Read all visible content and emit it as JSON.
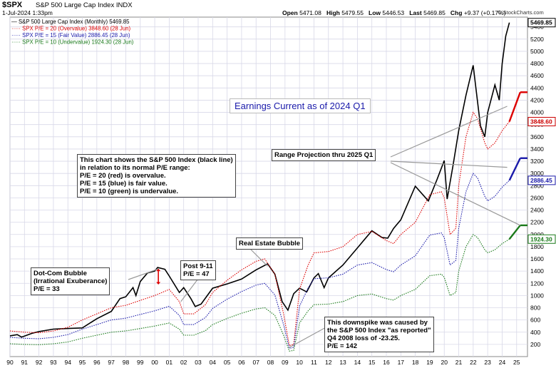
{
  "header": {
    "symbol": "$SPX",
    "name": "S&P 500 Large Cap Index  INDX",
    "date": "1-Jul-2024 1:33pm",
    "source": "© StockCharts.com",
    "open_label": "Open",
    "open": "5471.08",
    "high_label": "High",
    "high": "5479.55",
    "low_label": "Low",
    "low": "5446.53",
    "last_label": "Last",
    "last": "5469.85",
    "chg_label": "Chg",
    "chg": "+9.37 (+0.17%)"
  },
  "legend": [
    "— S&P 500 Large Cap Index (Monthly) 5469.85",
    "····· SPX P/E = 20 (Overvalue) 3848.60 (28 Jun)",
    "····· SPX P/E = 15 (Fair Value) 2886.45 (28 Jun)",
    "····· SPX P/E = 10 (Undervalue) 1924.30 (28 Jun)"
  ],
  "annotations": {
    "title": "Earnings Current as of 2024 Q1",
    "explain": "This chart shows the S&P 500 Index (black line)\nin relation to its normal P/E range:\nP/E = 20 (red) is overvalue.\nP/E = 15 (blue) is fair value.\nP/E = 10 (green) is undervalue.",
    "range": "Range Projection thru 2025 Q1",
    "realestate": "Real Estate Bubble",
    "post911": "Post 9-11\nP/E = 47",
    "dotcom": "Dot-Com Bubble\n(Irrational Exuberance)\nP/E = 33",
    "downspike": "This downspike was caused by\nthe S&P 500 Index \"as reported\"\nQ4 2008 loss of -23.25.\nP/E = 142"
  },
  "chart_data": {
    "type": "line",
    "x_tick_labels": [
      "90",
      "91",
      "92",
      "93",
      "94",
      "95",
      "96",
      "97",
      "98",
      "99",
      "00",
      "01",
      "02",
      "03",
      "04",
      "05",
      "06",
      "07",
      "08",
      "09",
      "10",
      "11",
      "12",
      "13",
      "14",
      "15",
      "16",
      "17",
      "18",
      "19",
      "20",
      "21",
      "22",
      "23",
      "24",
      "25"
    ],
    "y_tick_labels": [
      200,
      400,
      600,
      800,
      1000,
      1200,
      1400,
      1600,
      1800,
      2000,
      2200,
      2400,
      2600,
      2800,
      3000,
      3200,
      3400,
      3600,
      3800,
      4000,
      4200,
      4400,
      4600,
      4800,
      5000,
      5200,
      5400
    ],
    "ylim": [
      0,
      5560
    ],
    "xlim": [
      1990.0,
      2025.75
    ],
    "price_tags": [
      {
        "value": 5469.85,
        "label": "5469.85",
        "color": "#000000"
      },
      {
        "value": 3848.6,
        "label": "3848.60",
        "color": "#cc0000"
      },
      {
        "value": 2886.45,
        "label": "2886.45",
        "color": "#1a1aaa"
      },
      {
        "value": 1924.3,
        "label": "1924.30",
        "color": "#1a7a1a"
      }
    ],
    "series": [
      {
        "name": "S&P 500 Large Cap Index (Monthly) 5469.85",
        "color": "#000000",
        "style": "solid",
        "x": [
          1990.0,
          1990.5,
          1990.8,
          1991.0,
          1991.5,
          1992.0,
          1993.0,
          1994.0,
          1995.0,
          1996.0,
          1997.0,
          1997.6,
          1998.0,
          1998.5,
          1998.7,
          1999.0,
          1999.5,
          2000.0,
          2000.2,
          2000.7,
          2001.0,
          2001.7,
          2002.0,
          2002.5,
          2002.8,
          2003.2,
          2004.0,
          2005.0,
          2006.0,
          2007.0,
          2007.8,
          2008.3,
          2008.8,
          2009.2,
          2009.6,
          2010.0,
          2010.5,
          2011.0,
          2011.3,
          2011.7,
          2012.0,
          2013.0,
          2014.0,
          2015.0,
          2015.7,
          2016.1,
          2016.5,
          2017.0,
          2018.0,
          2018.9,
          2019.5,
          2020.0,
          2020.2,
          2020.6,
          2021.0,
          2021.5,
          2022.0,
          2022.5,
          2022.8,
          2023.0,
          2023.5,
          2023.8,
          2024.0,
          2024.25,
          2024.5
        ],
        "y": [
          340,
          360,
          320,
          335,
          380,
          410,
          450,
          460,
          470,
          620,
          740,
          950,
          980,
          1130,
          1000,
          1230,
          1370,
          1400,
          1460,
          1430,
          1320,
          1050,
          1130,
          950,
          820,
          860,
          1120,
          1190,
          1270,
          1420,
          1520,
          1350,
          900,
          760,
          1030,
          1120,
          1060,
          1290,
          1360,
          1130,
          1290,
          1500,
          1780,
          2060,
          1950,
          1940,
          2100,
          2240,
          2790,
          2550,
          2900,
          3210,
          2580,
          3120,
          3700,
          4280,
          4770,
          3780,
          3600,
          4000,
          4450,
          4200,
          4800,
          5250,
          5470
        ]
      },
      {
        "name": "SPX P/E = 20 (Overvalue) 3848.60 (28 Jun)",
        "color": "#dd0000",
        "style": "dotted",
        "x": [
          1990.0,
          1991.0,
          1992.0,
          1993.0,
          1994.0,
          1995.0,
          1996.0,
          1997.0,
          1998.0,
          1999.0,
          2000.0,
          2001.0,
          2001.7,
          2002.0,
          2002.7,
          2003.5,
          2004.0,
          2005.0,
          2006.0,
          2007.0,
          2007.6,
          2008.3,
          2008.9,
          2009.3,
          2009.6,
          2010.0,
          2010.6,
          2011.0,
          2012.0,
          2013.0,
          2014.0,
          2015.0,
          2016.0,
          2016.5,
          2017.0,
          2018.0,
          2019.0,
          2019.8,
          2020.0,
          2020.4,
          2020.8,
          2021.0,
          2021.5,
          2022.0,
          2022.3,
          2022.8,
          2023.0,
          2023.5,
          2024.0,
          2024.5
        ],
        "y": [
          420,
          400,
          390,
          420,
          480,
          600,
          700,
          800,
          840,
          920,
          1000,
          1100,
          900,
          700,
          700,
          850,
          1050,
          1250,
          1420,
          1560,
          1600,
          1350,
          700,
          180,
          200,
          1100,
          1500,
          1700,
          1720,
          1800,
          2000,
          2050,
          1900,
          1850,
          2000,
          2200,
          2650,
          2700,
          2600,
          2000,
          2100,
          2800,
          3600,
          4000,
          3900,
          3500,
          3400,
          3500,
          3700,
          3850
        ]
      },
      {
        "name": "SPX P/E = 15 (Fair Value) 2886.45 (28 Jun)",
        "color": "#1a1aaa",
        "style": "dotted",
        "x": [
          1990.0,
          1991.0,
          1992.0,
          1993.0,
          1994.0,
          1995.0,
          1996.0,
          1997.0,
          1998.0,
          1999.0,
          2000.0,
          2001.0,
          2001.7,
          2002.0,
          2002.7,
          2003.5,
          2004.0,
          2005.0,
          2006.0,
          2007.0,
          2007.6,
          2008.3,
          2008.9,
          2009.3,
          2009.6,
          2010.0,
          2010.6,
          2011.0,
          2012.0,
          2013.0,
          2014.0,
          2015.0,
          2016.0,
          2016.5,
          2017.0,
          2018.0,
          2019.0,
          2019.8,
          2020.0,
          2020.4,
          2020.8,
          2021.0,
          2021.5,
          2022.0,
          2022.3,
          2022.8,
          2023.0,
          2023.5,
          2024.0,
          2024.5
        ],
        "y": [
          315,
          300,
          292,
          315,
          360,
          450,
          525,
          600,
          630,
          690,
          750,
          825,
          675,
          525,
          525,
          640,
          790,
          940,
          1065,
          1170,
          1200,
          1010,
          525,
          135,
          150,
          825,
          1125,
          1275,
          1290,
          1350,
          1500,
          1540,
          1425,
          1390,
          1500,
          1650,
          1990,
          2025,
          1950,
          1500,
          1575,
          2100,
          2700,
          3000,
          2925,
          2625,
          2550,
          2625,
          2775,
          2886
        ]
      },
      {
        "name": "SPX P/E = 10 (Undervalue) 1924.30 (28 Jun)",
        "color": "#1a7a1a",
        "style": "dotted",
        "x": [
          1990.0,
          1991.0,
          1992.0,
          1993.0,
          1994.0,
          1995.0,
          1996.0,
          1997.0,
          1998.0,
          1999.0,
          2000.0,
          2001.0,
          2001.7,
          2002.0,
          2002.7,
          2003.5,
          2004.0,
          2005.0,
          2006.0,
          2007.0,
          2007.6,
          2008.3,
          2008.9,
          2009.3,
          2009.6,
          2010.0,
          2010.6,
          2011.0,
          2012.0,
          2013.0,
          2014.0,
          2015.0,
          2016.0,
          2016.5,
          2017.0,
          2018.0,
          2019.0,
          2019.8,
          2020.0,
          2020.4,
          2020.8,
          2021.0,
          2021.5,
          2022.0,
          2022.3,
          2022.8,
          2023.0,
          2023.5,
          2024.0,
          2024.5
        ],
        "y": [
          210,
          200,
          195,
          210,
          240,
          300,
          350,
          400,
          420,
          460,
          500,
          550,
          450,
          350,
          350,
          425,
          525,
          625,
          710,
          780,
          800,
          675,
          350,
          90,
          100,
          550,
          750,
          850,
          860,
          900,
          1000,
          1025,
          950,
          925,
          1000,
          1100,
          1325,
          1350,
          1300,
          1000,
          1050,
          1400,
          1800,
          2000,
          1950,
          1750,
          1700,
          1750,
          1850,
          1924
        ]
      }
    ],
    "projections": [
      {
        "color": "#dd0000",
        "x": [
          2024.5,
          2025.25
        ],
        "y": [
          3850,
          4330
        ]
      },
      {
        "color": "#1a1aaa",
        "x": [
          2024.5,
          2025.25
        ],
        "y": [
          2886,
          3250
        ]
      },
      {
        "color": "#1a7a1a",
        "x": [
          2024.5,
          2025.25
        ],
        "y": [
          1924,
          2150
        ]
      }
    ],
    "colors": {
      "price": "#000000",
      "over": "#dd0000",
      "fair": "#1a1aaa",
      "under": "#1a7a1a",
      "grid": "#d8d8e8",
      "tag": "#000000"
    }
  }
}
